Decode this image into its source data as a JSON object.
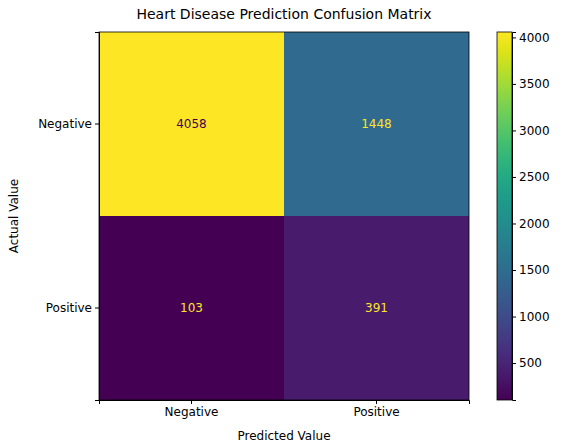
{
  "chart_data": {
    "type": "heatmap",
    "title": "Heart Disease Prediction Confusion Matrix",
    "x_label": "Predicted Value",
    "y_label": "Actual Value",
    "x_categories": [
      "Negative",
      "Positive"
    ],
    "y_categories": [
      "Negative",
      "Positive"
    ],
    "cells": [
      [
        4058,
        1448
      ],
      [
        103,
        391
      ]
    ],
    "color": "viridis",
    "colorbar_range": [
      103,
      4058
    ],
    "colorbar_ticks": [
      500,
      1000,
      1500,
      2000,
      2500,
      3000,
      3500,
      4000
    ],
    "data_labels": true
  }
}
